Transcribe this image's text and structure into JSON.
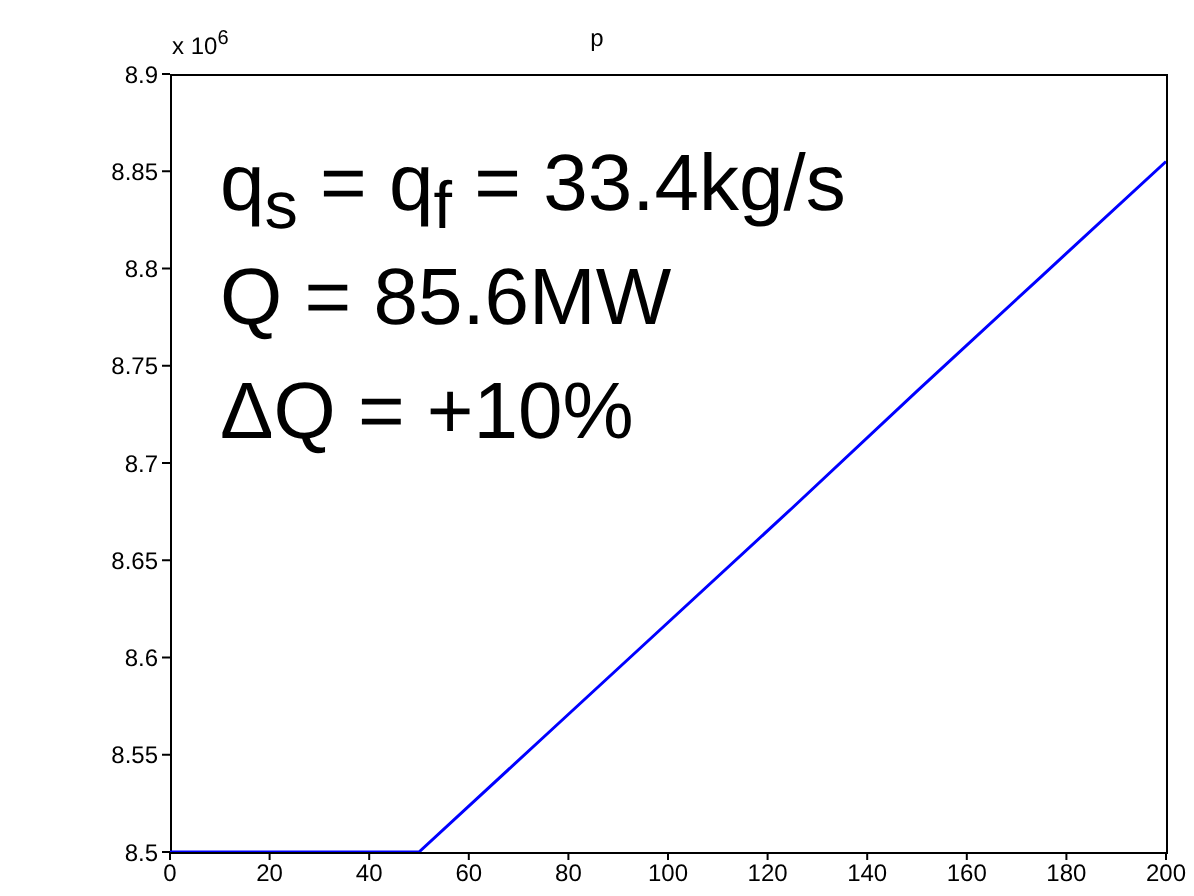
{
  "chart_data": {
    "type": "line",
    "title": "p",
    "x": [
      0,
      10,
      20,
      30,
      40,
      50,
      75,
      100,
      125,
      150,
      175,
      200
    ],
    "series": [
      {
        "color": "#0000ff",
        "values": [
          8.5,
          8.5,
          8.5,
          8.5,
          8.5,
          8.5,
          8.559,
          8.618,
          8.677,
          8.737,
          8.796,
          8.855
        ]
      }
    ],
    "xlim": [
      0,
      200
    ],
    "xticks": [
      0,
      20,
      40,
      60,
      80,
      100,
      120,
      140,
      160,
      180,
      200
    ],
    "ylim": [
      8.5,
      8.9
    ],
    "yticks": [
      8.5,
      8.55,
      8.6,
      8.65,
      8.7,
      8.75,
      8.8,
      8.85,
      8.9
    ],
    "grid": false,
    "legend": false,
    "marker": "none",
    "line_style": "solid",
    "annotations": [
      "x 10$^{6}$",
      "q$_{s}$ = q$_{f}$ = 33.4kg/s",
      "Q = 85.6MW",
      "ΔQ = +10%"
    ]
  }
}
